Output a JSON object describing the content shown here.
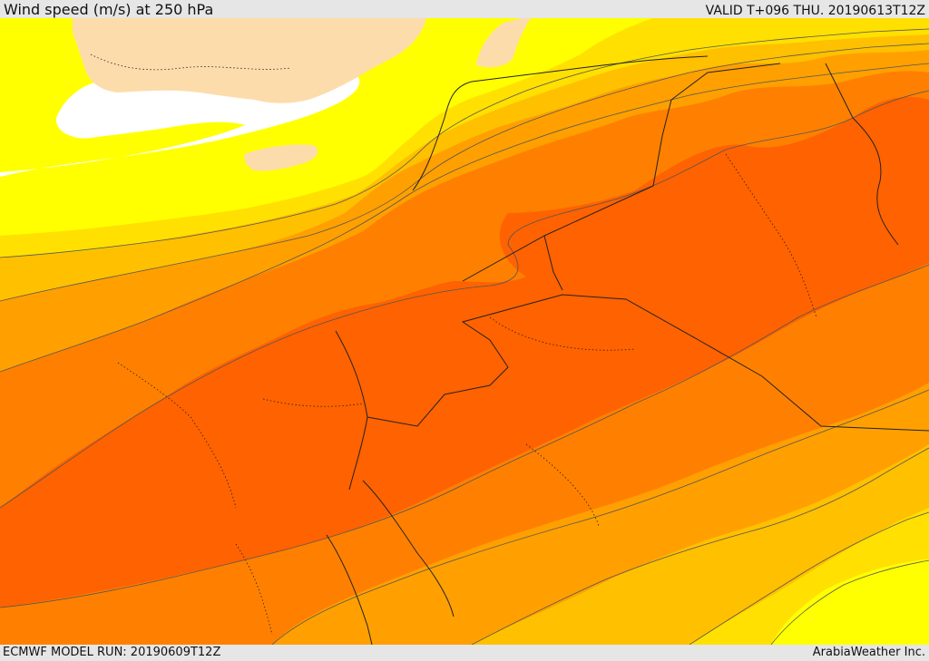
{
  "header": {
    "title": "Wind speed (m/s) at 250 hPa",
    "valid_time": "VALID T+096 THU. 20190613T12Z"
  },
  "footer": {
    "model_run": "ECMWF MODEL RUN: 20190609T12Z",
    "credit": "ArabiaWeather Inc."
  },
  "map": {
    "field": "wind speed",
    "level": "250 hPa",
    "fill_colors": {
      "land": "#fddcab",
      "calm": "#ffffff",
      "band_1": "#ffff00",
      "band_2": "#ffe000",
      "band_3": "#ffc000",
      "band_4": "#ffa000",
      "band_5": "#ff8000",
      "band_6": "#ff6200"
    },
    "contour_color": "#555555",
    "border_color": "#222222"
  }
}
